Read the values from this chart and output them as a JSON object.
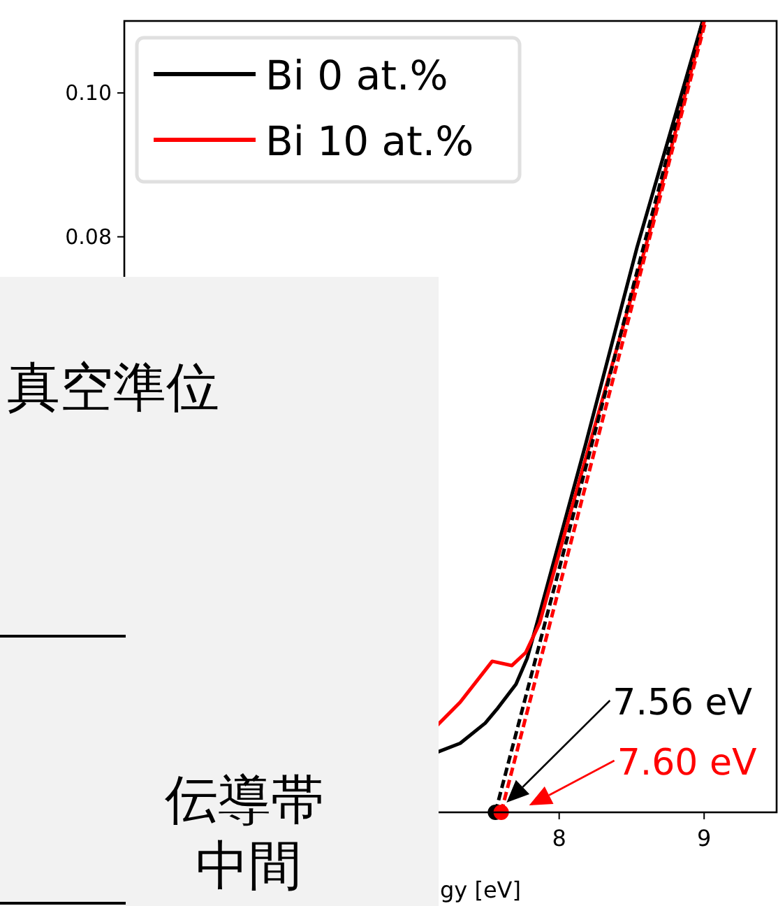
{
  "chart_data": {
    "type": "line",
    "xlabel": "gy [eV]",
    "xlim": [
      5.0,
      9.5
    ],
    "ylim": [
      0,
      0.11
    ],
    "xticks": [
      8,
      9
    ],
    "yticks": [
      {
        "value": 0.08,
        "label": "0.08"
      },
      {
        "value": 0.1,
        "label": "0.10"
      }
    ],
    "legend": "top left",
    "line_style": "solid",
    "series": [
      {
        "name": "Bi 0 at.%",
        "color": "#000000",
        "x": [
          7.163,
          7.317,
          7.49,
          7.577,
          7.702,
          7.779,
          7.865,
          8.183,
          8.538,
          8.99
        ],
        "values": [
          0.0084,
          0.0096,
          0.0124,
          0.0145,
          0.0178,
          0.0214,
          0.0276,
          0.0512,
          0.0786,
          0.11
        ]
      },
      {
        "name": "Bi 10 at.%",
        "color": "#ff0000",
        "x": [
          7.154,
          7.317,
          7.538,
          7.673,
          7.769,
          7.865,
          8.183,
          8.596,
          9.0
        ],
        "values": [
          0.012,
          0.0153,
          0.021,
          0.0204,
          0.0222,
          0.0263,
          0.0492,
          0.0786,
          0.11
        ]
      },
      {
        "type": "line",
        "line_style": "dashed",
        "color": "#000000",
        "x": [
          7.56,
          8.99
        ],
        "values": [
          0,
          0.11
        ]
      },
      {
        "type": "line",
        "line_style": "dashed",
        "color": "#ff0000",
        "x": [
          7.6,
          9.01
        ],
        "values": [
          0,
          0.11
        ]
      },
      {
        "type": "scatter",
        "marker": "circle",
        "color": "#000000",
        "x": [
          7.56
        ],
        "values": [
          0
        ]
      },
      {
        "type": "scatter",
        "marker": "circle",
        "color": "#ff0000",
        "x": [
          7.6
        ],
        "values": [
          0
        ]
      }
    ],
    "annotations": [
      "7.56 eV",
      "7.60 eV",
      "真空準位",
      "伝導帯",
      "中間"
    ]
  }
}
